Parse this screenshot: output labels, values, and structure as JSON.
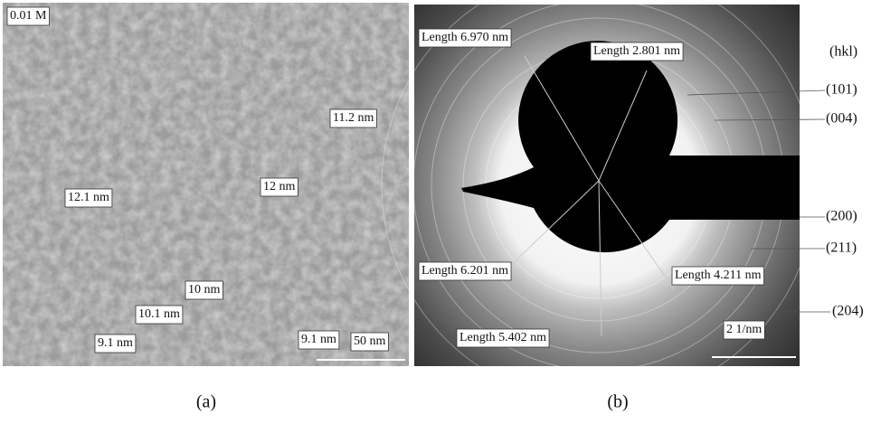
{
  "panel_a": {
    "caption": "(a)",
    "sample": "0.01 M",
    "scale_bar": "50 nm",
    "sizes": [
      "11.2 nm",
      "12 nm",
      "12.1 nm",
      "10 nm",
      "10.1 nm",
      "9.1 nm",
      "9.1 nm"
    ]
  },
  "panel_b": {
    "caption": "(b)",
    "scale_bar": "2 1/nm",
    "lengths": [
      "Length 6.970 nm",
      "Length 2.801 nm",
      "Length 6.201 nm",
      "Length 4.211 nm",
      "Length 5.402 nm"
    ],
    "hkl_header": "(hkl)",
    "hkl": [
      "(101)",
      "(004)",
      "(200)",
      "(211)",
      "(204)"
    ]
  }
}
